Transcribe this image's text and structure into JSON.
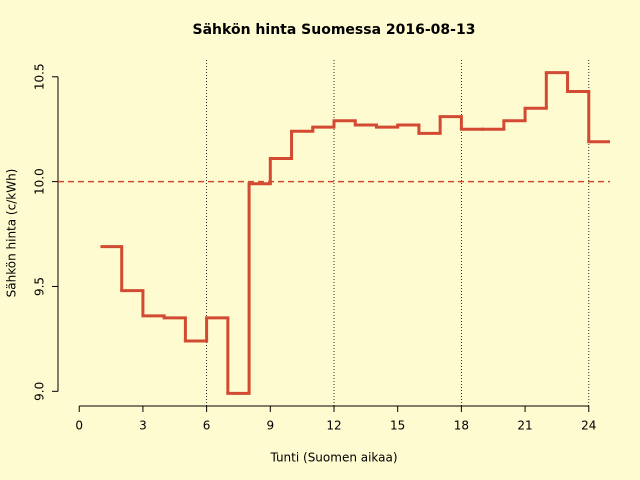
{
  "chart_data": {
    "type": "step",
    "title": "Sähkön hinta Suomessa 2016-08-13",
    "x_label": "Tunti (Suomen aikaa)",
    "y_label": "Sähkön hinta (c/kWh)",
    "x": [
      1,
      2,
      3,
      4,
      5,
      6,
      7,
      8,
      9,
      10,
      11,
      12,
      13,
      14,
      15,
      16,
      17,
      18,
      19,
      20,
      21,
      22,
      23,
      24
    ],
    "values": [
      9.69,
      9.48,
      9.36,
      9.35,
      9.24,
      9.35,
      8.99,
      9.99,
      10.11,
      10.24,
      10.26,
      10.29,
      10.27,
      10.26,
      10.27,
      10.23,
      10.31,
      10.25,
      10.25,
      10.29,
      10.35,
      10.52,
      10.43,
      10.19
    ],
    "color": "#d24a32",
    "xlim": [
      -1,
      25
    ],
    "ylim": [
      8.93,
      10.58
    ],
    "xticks": [
      0,
      3,
      6,
      9,
      12,
      15,
      18,
      21,
      24
    ],
    "yticks": [
      {
        "value": 9,
        "label": "9.0"
      },
      9.5,
      {
        "value": 10,
        "label": "10.0"
      },
      10.5
    ],
    "vlines": [
      6,
      12,
      18,
      24
    ],
    "hline": 10
  }
}
